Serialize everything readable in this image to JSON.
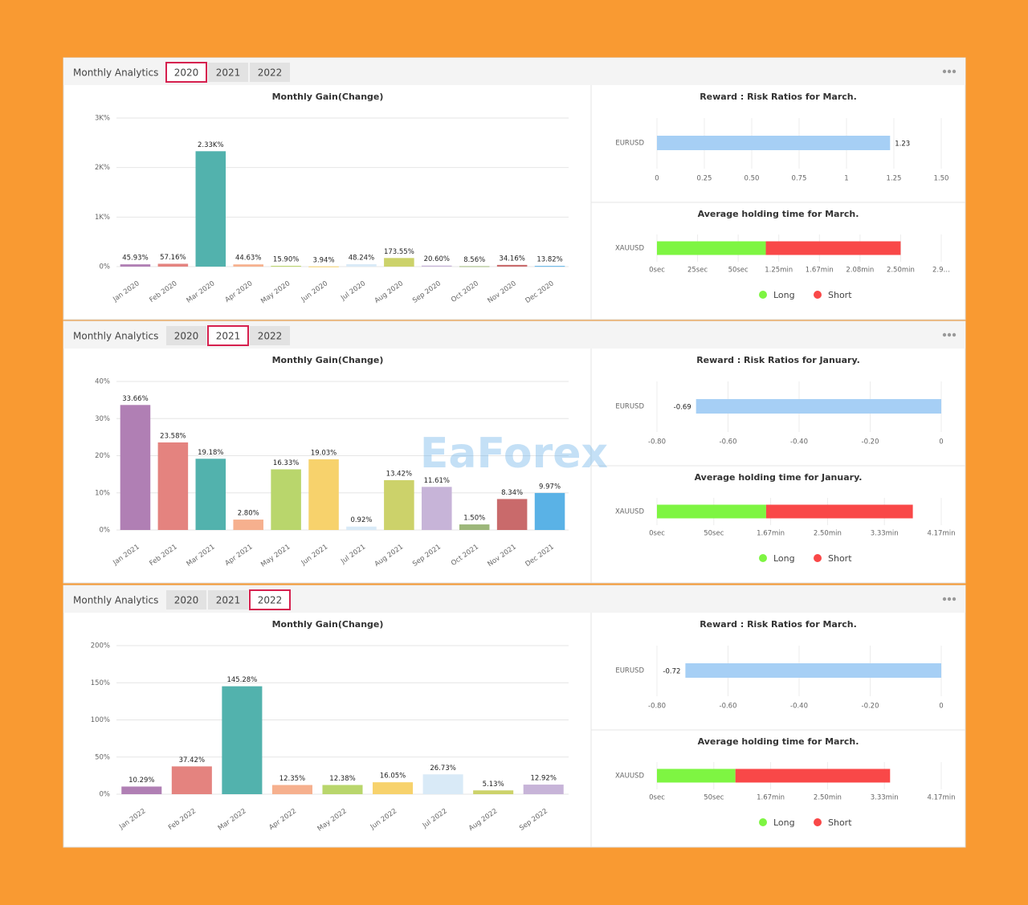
{
  "watermark": "EaForex",
  "panels": [
    {
      "title": "Monthly Analytics",
      "tabs": [
        "2020",
        "2021",
        "2022"
      ],
      "selected_tab": 0,
      "gain_chart": {
        "type": "bar",
        "title": "Monthly Gain(Change)",
        "categories": [
          "Jan 2020",
          "Feb 2020",
          "Mar 2020",
          "Apr 2020",
          "May 2020",
          "Jun 2020",
          "Jul 2020",
          "Aug 2020",
          "Sep 2020",
          "Oct 2020",
          "Nov 2020",
          "Dec 2020"
        ],
        "values": [
          45.93,
          57.16,
          2330,
          44.63,
          15.9,
          3.94,
          48.24,
          173.55,
          20.6,
          8.56,
          34.16,
          13.82
        ],
        "value_labels": [
          "45.93%",
          "57.16%",
          "2.33K%",
          "44.63%",
          "15.90%",
          "3.94%",
          "48.24%",
          "173.55%",
          "20.60%",
          "8.56%",
          "34.16%",
          "13.82%"
        ],
        "colors": [
          "#b07fb4",
          "#e4837f",
          "#52b2ad",
          "#f6b08e",
          "#b9d66c",
          "#f7d26c",
          "#d9eaf7",
          "#ccd26a",
          "#c7b4d8",
          "#9db77a",
          "#c96a6b",
          "#5ab2e6"
        ],
        "ylim": [
          0,
          3000
        ],
        "yticks": [
          {
            "value": 0,
            "label": "0%"
          },
          {
            "value": 1000,
            "label": "1K%"
          },
          {
            "value": 2000,
            "label": "2K%"
          },
          {
            "value": 3000,
            "label": "3K%"
          }
        ],
        "grid": true
      },
      "ratio_chart": {
        "type": "hbar",
        "title": "Reward : Risk Ratios for March.",
        "categories": [
          "EURUSD"
        ],
        "values": [
          1.23
        ],
        "color": "#a6cff5",
        "xlim": [
          0,
          1.5
        ],
        "xticks": [
          0,
          0.25,
          {
            "value": 0.5,
            "label": "0.50"
          },
          0.75,
          1,
          1.25,
          {
            "value": 1.5,
            "label": "1.50"
          }
        ],
        "grid": true
      },
      "holding_chart": {
        "type": "stacked-hbar",
        "title": "Average holding time for March.",
        "categories": [
          "XAUUSD"
        ],
        "series": [
          {
            "name": "Long",
            "color": "#7ef542",
            "values": [
              67
            ]
          },
          {
            "name": "Short",
            "color": "#f94848",
            "values": [
              83
            ]
          }
        ],
        "xlim": [
          0,
          175
        ],
        "xticks": [
          {
            "value": 0,
            "label": "0sec"
          },
          {
            "value": 25,
            "label": "25sec"
          },
          {
            "value": 50,
            "label": "50sec"
          },
          {
            "value": 75,
            "label": "1.25min"
          },
          {
            "value": 100,
            "label": "1.67min"
          },
          {
            "value": 125,
            "label": "2.08min"
          },
          {
            "value": 150,
            "label": "2.50min"
          },
          {
            "value": 175,
            "label": "2.9…"
          }
        ],
        "grid": true
      }
    },
    {
      "title": "Monthly Analytics",
      "tabs": [
        "2020",
        "2021",
        "2022"
      ],
      "selected_tab": 1,
      "gain_chart": {
        "type": "bar",
        "title": "Monthly Gain(Change)",
        "categories": [
          "Jan 2021",
          "Feb 2021",
          "Mar 2021",
          "Apr 2021",
          "May 2021",
          "Jun 2021",
          "Jul 2021",
          "Aug 2021",
          "Sep 2021",
          "Oct 2021",
          "Nov 2021",
          "Dec 2021"
        ],
        "values": [
          33.66,
          23.58,
          19.18,
          2.8,
          16.33,
          19.03,
          0.92,
          13.42,
          11.61,
          1.5,
          8.34,
          9.97
        ],
        "value_labels": [
          "33.66%",
          "23.58%",
          "19.18%",
          "2.80%",
          "16.33%",
          "19.03%",
          "0.92%",
          "13.42%",
          "11.61%",
          "1.50%",
          "8.34%",
          "9.97%"
        ],
        "colors": [
          "#b07fb4",
          "#e4837f",
          "#52b2ad",
          "#f6b08e",
          "#b9d66c",
          "#f7d26c",
          "#d9eaf7",
          "#ccd26a",
          "#c7b4d8",
          "#9db77a",
          "#c96a6b",
          "#5ab2e6"
        ],
        "ylim": [
          0,
          40
        ],
        "yticks": [
          {
            "value": 0,
            "label": "0%"
          },
          {
            "value": 10,
            "label": "10%"
          },
          {
            "value": 20,
            "label": "20%"
          },
          {
            "value": 30,
            "label": "30%"
          },
          {
            "value": 40,
            "label": "40%"
          }
        ],
        "grid": true
      },
      "ratio_chart": {
        "type": "hbar",
        "title": "Reward : Risk Ratios for January.",
        "categories": [
          "EURUSD"
        ],
        "values": [
          -0.69
        ],
        "color": "#a6cff5",
        "xlim": [
          -0.8,
          0
        ],
        "xticks": [
          {
            "value": -0.8,
            "label": "-0.80"
          },
          {
            "value": -0.6,
            "label": "-0.60"
          },
          {
            "value": -0.4,
            "label": "-0.40"
          },
          {
            "value": -0.2,
            "label": "-0.20"
          },
          0
        ],
        "grid": true
      },
      "holding_chart": {
        "type": "stacked-hbar",
        "title": "Average holding time for January.",
        "categories": [
          "XAUUSD"
        ],
        "series": [
          {
            "name": "Long",
            "color": "#7ef542",
            "values": [
              96
            ]
          },
          {
            "name": "Short",
            "color": "#f94848",
            "values": [
              129
            ]
          }
        ],
        "xlim": [
          0,
          250
        ],
        "xticks": [
          {
            "value": 0,
            "label": "0sec"
          },
          {
            "value": 50,
            "label": "50sec"
          },
          {
            "value": 100,
            "label": "1.67min"
          },
          {
            "value": 150,
            "label": "2.50min"
          },
          {
            "value": 200,
            "label": "3.33min"
          },
          {
            "value": 250,
            "label": "4.17min"
          }
        ],
        "grid": true
      }
    },
    {
      "title": "Monthly Analytics",
      "tabs": [
        "2020",
        "2021",
        "2022"
      ],
      "selected_tab": 2,
      "gain_chart": {
        "type": "bar",
        "title": "Monthly Gain(Change)",
        "categories": [
          "Jan 2022",
          "Feb 2022",
          "Mar 2022",
          "Apr 2022",
          "May 2022",
          "Jun 2022",
          "Jul 2022",
          "Aug 2022",
          "Sep 2022"
        ],
        "values": [
          10.29,
          37.42,
          145.28,
          12.35,
          12.38,
          16.05,
          26.73,
          5.13,
          12.92
        ],
        "value_labels": [
          "10.29%",
          "37.42%",
          "145.28%",
          "12.35%",
          "12.38%",
          "16.05%",
          "26.73%",
          "5.13%",
          "12.92%"
        ],
        "colors": [
          "#b07fb4",
          "#e4837f",
          "#52b2ad",
          "#f6b08e",
          "#b9d66c",
          "#f7d26c",
          "#d9eaf7",
          "#ccd26a",
          "#c7b4d8"
        ],
        "ylim": [
          0,
          200
        ],
        "yticks": [
          {
            "value": 0,
            "label": "0%"
          },
          {
            "value": 50,
            "label": "50%"
          },
          {
            "value": 100,
            "label": "100%"
          },
          {
            "value": 150,
            "label": "150%"
          },
          {
            "value": 200,
            "label": "200%"
          }
        ],
        "grid": true
      },
      "ratio_chart": {
        "type": "hbar",
        "title": "Reward : Risk Ratios for March.",
        "categories": [
          "EURUSD"
        ],
        "values": [
          -0.72
        ],
        "color": "#a6cff5",
        "xlim": [
          -0.8,
          0
        ],
        "xticks": [
          {
            "value": -0.8,
            "label": "-0.80"
          },
          {
            "value": -0.6,
            "label": "-0.60"
          },
          {
            "value": -0.4,
            "label": "-0.40"
          },
          {
            "value": -0.2,
            "label": "-0.20"
          },
          0
        ],
        "grid": true
      },
      "holding_chart": {
        "type": "stacked-hbar",
        "title": "Average holding time for March.",
        "categories": [
          "XAUUSD"
        ],
        "series": [
          {
            "name": "Long",
            "color": "#7ef542",
            "values": [
              69
            ]
          },
          {
            "name": "Short",
            "color": "#f94848",
            "values": [
              136
            ]
          }
        ],
        "xlim": [
          0,
          250
        ],
        "xticks": [
          {
            "value": 0,
            "label": "0sec"
          },
          {
            "value": 50,
            "label": "50sec"
          },
          {
            "value": 100,
            "label": "1.67min"
          },
          {
            "value": 150,
            "label": "2.50min"
          },
          {
            "value": 200,
            "label": "3.33min"
          },
          {
            "value": 250,
            "label": "4.17min"
          }
        ],
        "grid": true
      }
    }
  ]
}
